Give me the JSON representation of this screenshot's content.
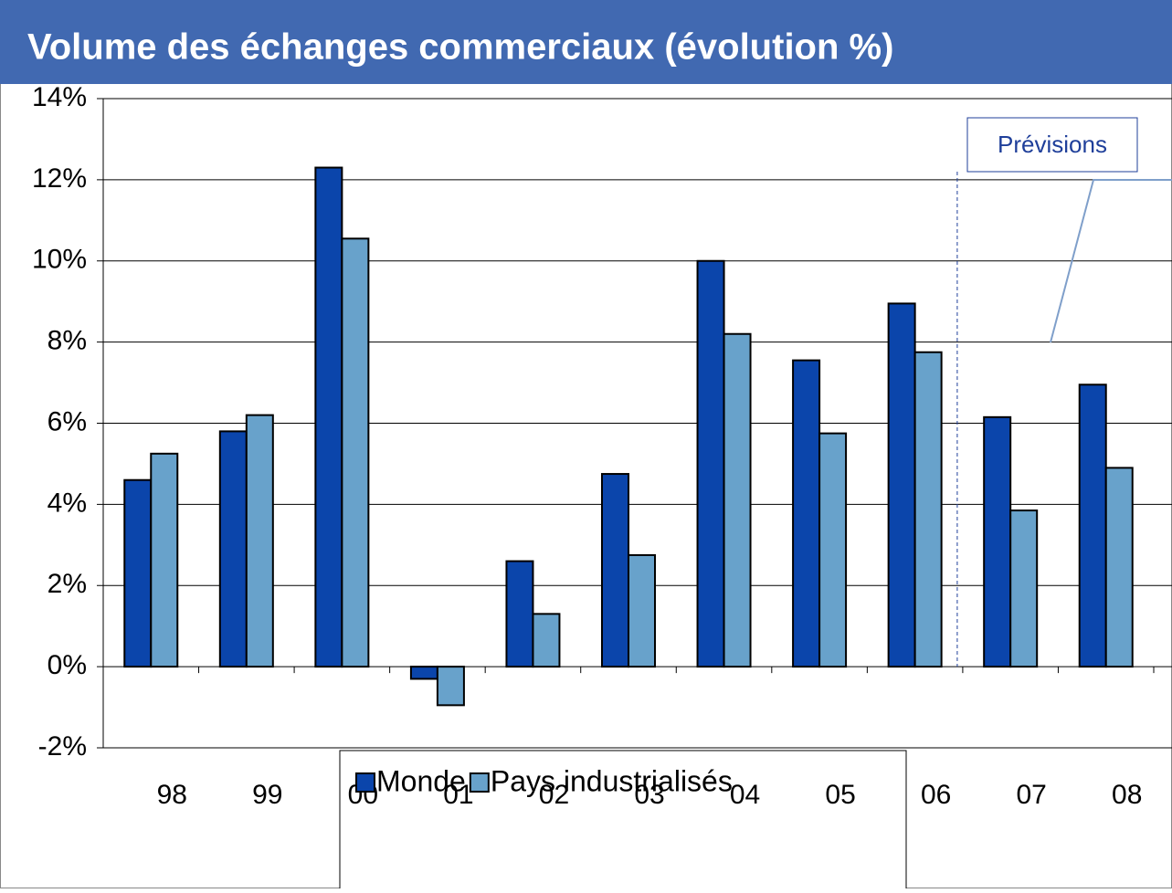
{
  "chart_data": {
    "type": "bar",
    "title": "Volume des échanges commerciaux (évolution %)",
    "categories": [
      "98",
      "99",
      "00",
      "01",
      "02",
      "03",
      "04",
      "05",
      "06",
      "07",
      "08"
    ],
    "series": [
      {
        "name": "Monde",
        "color": "#0b45ab",
        "values": [
          4.6,
          5.8,
          12.3,
          -0.3,
          2.6,
          4.75,
          10.0,
          7.55,
          8.95,
          6.15,
          6.95
        ]
      },
      {
        "name": "Pays industrialisés",
        "color": "#68a2cb",
        "values": [
          5.25,
          6.2,
          10.55,
          -0.95,
          1.3,
          2.75,
          8.2,
          5.75,
          7.75,
          3.85,
          4.9
        ]
      }
    ],
    "ylim": [
      -2,
      14
    ],
    "yticks": [
      {
        "value": -2,
        "label": "-2%"
      },
      {
        "value": 0,
        "label": "0%"
      },
      {
        "value": 2,
        "label": "2%"
      },
      {
        "value": 4,
        "label": "4%"
      },
      {
        "value": 6,
        "label": "6%"
      },
      {
        "value": 8,
        "label": "8%"
      },
      {
        "value": 10,
        "label": "10%"
      },
      {
        "value": 12,
        "label": "12%"
      },
      {
        "value": 14,
        "label": "14%"
      }
    ],
    "grid": true,
    "legend": "bottom",
    "annotations": [
      "Prévisions"
    ]
  }
}
